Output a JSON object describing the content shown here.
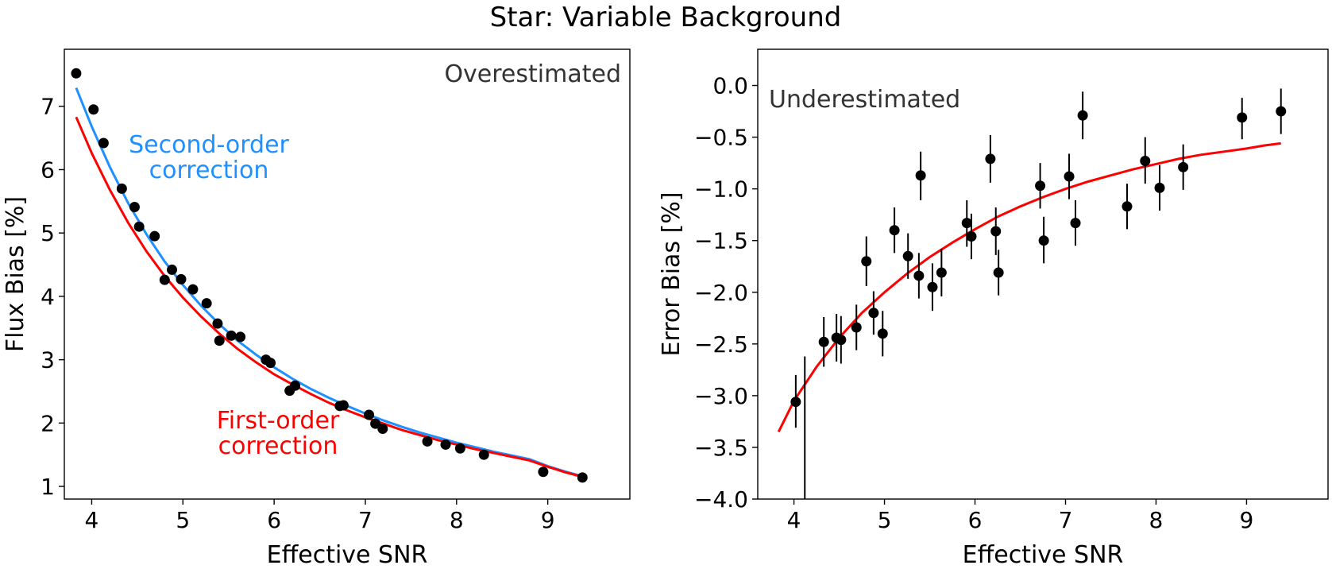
{
  "title": "Star: Variable Background",
  "colors": {
    "first_order": "#ff0000",
    "second_order": "#1e90ff",
    "points": "#000000"
  },
  "chart_data": [
    {
      "type": "scatter",
      "xlabel": "Effective SNR",
      "ylabel": "Flux Bias [%]",
      "xlim": [
        3.7,
        9.9
      ],
      "ylim": [
        0.8,
        7.9
      ],
      "xticks": [
        4,
        5,
        6,
        7,
        8,
        9
      ],
      "yticks": [
        1,
        2,
        3,
        4,
        5,
        6,
        7
      ],
      "annotation": "Overestimated",
      "series": [
        {
          "kind": "points",
          "x": [
            3.83,
            4.02,
            4.13,
            4.33,
            4.47,
            4.52,
            4.69,
            4.8,
            4.88,
            4.98,
            5.11,
            5.26,
            5.38,
            5.4,
            5.53,
            5.63,
            5.91,
            5.96,
            6.17,
            6.23,
            6.72,
            6.76,
            7.04,
            7.11,
            7.19,
            7.68,
            7.88,
            8.04,
            8.3,
            8.95,
            9.38
          ],
          "y": [
            7.52,
            6.95,
            6.42,
            5.7,
            5.41,
            5.1,
            4.95,
            4.26,
            4.42,
            4.27,
            4.11,
            3.89,
            3.57,
            3.3,
            3.38,
            3.36,
            3.0,
            2.95,
            2.51,
            2.59,
            2.27,
            2.28,
            2.13,
            1.99,
            1.91,
            1.71,
            1.66,
            1.6,
            1.5,
            1.23,
            1.14
          ]
        },
        {
          "name": "Second-order\ncorrection",
          "kind": "line",
          "color": "#1e90ff",
          "x": [
            3.83,
            4.0,
            4.2,
            4.4,
            4.6,
            4.8,
            5.0,
            5.2,
            5.4,
            5.6,
            5.8,
            6.0,
            6.2,
            6.4,
            6.6,
            6.8,
            7.0,
            7.2,
            7.4,
            7.6,
            7.8,
            8.0,
            8.2,
            8.4,
            8.6,
            8.8,
            9.0,
            9.2,
            9.38
          ],
          "y": [
            7.29,
            6.68,
            6.04,
            5.47,
            4.98,
            4.55,
            4.18,
            3.85,
            3.56,
            3.3,
            3.08,
            2.88,
            2.7,
            2.54,
            2.4,
            2.27,
            2.15,
            2.04,
            1.94,
            1.85,
            1.77,
            1.69,
            1.62,
            1.55,
            1.49,
            1.43,
            1.32,
            1.23,
            1.16
          ]
        },
        {
          "name": "First-order\ncorrection",
          "kind": "line",
          "color": "#ff0000",
          "x": [
            3.83,
            4.0,
            4.2,
            4.4,
            4.6,
            4.8,
            5.0,
            5.2,
            5.4,
            5.6,
            5.8,
            6.0,
            6.2,
            6.4,
            6.6,
            6.8,
            7.0,
            7.2,
            7.4,
            7.6,
            7.8,
            8.0,
            8.2,
            8.4,
            8.6,
            8.8,
            9.0,
            9.2,
            9.38
          ],
          "y": [
            6.83,
            6.26,
            5.68,
            5.16,
            4.71,
            4.32,
            3.98,
            3.68,
            3.41,
            3.17,
            2.96,
            2.77,
            2.61,
            2.46,
            2.32,
            2.2,
            2.09,
            1.99,
            1.89,
            1.81,
            1.73,
            1.66,
            1.59,
            1.53,
            1.47,
            1.41,
            1.31,
            1.22,
            1.15
          ]
        }
      ]
    },
    {
      "type": "scatter",
      "xlabel": "Effective SNR",
      "ylabel": "Error Bias [%]",
      "xlim": [
        3.6,
        9.9
      ],
      "ylim": [
        -4.0,
        0.35
      ],
      "xticks": [
        4,
        5,
        6,
        7,
        8,
        9
      ],
      "yticks": [
        0.0,
        -0.5,
        -1.0,
        -1.5,
        -2.0,
        -2.5,
        -3.0,
        -3.5,
        -4.0
      ],
      "ytick_labels": [
        "0.0",
        "−0.5",
        "−1.0",
        "−1.5",
        "−2.0",
        "−2.5",
        "−3.0",
        "−3.5",
        "−4.0"
      ],
      "annotation": "Underestimated",
      "series": [
        {
          "kind": "errorbar",
          "x": [
            4.02,
            4.33,
            4.47,
            4.52,
            4.69,
            4.8,
            4.88,
            4.98,
            5.11,
            5.26,
            5.38,
            5.4,
            5.53,
            5.63,
            5.91,
            5.96,
            6.17,
            6.23,
            6.26,
            6.72,
            6.76,
            7.04,
            7.11,
            7.19,
            7.68,
            7.88,
            8.04,
            8.3,
            8.95,
            9.38
          ],
          "y": [
            -3.06,
            -2.48,
            -2.44,
            -2.46,
            -2.34,
            -1.7,
            -2.2,
            -2.4,
            -1.4,
            -1.65,
            -1.84,
            -0.87,
            -1.95,
            -1.81,
            -1.33,
            -1.46,
            -0.71,
            -1.41,
            -1.81,
            -0.97,
            -1.5,
            -0.88,
            -1.33,
            -0.29,
            -1.17,
            -0.73,
            -0.99,
            -0.79,
            -0.31,
            -0.25
          ],
          "err_low": [
            0.25,
            0.24,
            0.23,
            0.23,
            0.22,
            0.24,
            0.21,
            0.22,
            0.22,
            0.22,
            0.22,
            0.24,
            0.23,
            0.23,
            0.23,
            0.22,
            0.23,
            0.23,
            0.22,
            0.22,
            0.22,
            0.22,
            0.22,
            0.23,
            0.22,
            0.22,
            0.22,
            0.22,
            0.21,
            0.22
          ],
          "err_high": [
            0.26,
            0.24,
            0.23,
            0.23,
            0.22,
            0.24,
            0.21,
            0.22,
            0.22,
            0.22,
            0.22,
            0.23,
            0.23,
            0.23,
            0.22,
            0.22,
            0.23,
            0.23,
            0.22,
            0.22,
            0.23,
            0.22,
            0.22,
            0.23,
            0.22,
            0.23,
            0.22,
            0.22,
            0.19,
            0.22
          ]
        },
        {
          "kind": "vline",
          "x": 4.12,
          "y": [
            -4.0,
            -2.62
          ]
        },
        {
          "kind": "line",
          "color": "#ff0000",
          "x": [
            3.83,
            4.0,
            4.25,
            4.5,
            4.75,
            5.0,
            5.25,
            5.5,
            5.75,
            6.0,
            6.25,
            6.5,
            6.75,
            7.0,
            7.25,
            7.5,
            7.75,
            8.0,
            8.25,
            8.5,
            8.75,
            9.0,
            9.2,
            9.38
          ],
          "y": [
            -3.35,
            -3.05,
            -2.72,
            -2.44,
            -2.2,
            -2.0,
            -1.82,
            -1.66,
            -1.52,
            -1.39,
            -1.27,
            -1.17,
            -1.08,
            -1.0,
            -0.93,
            -0.87,
            -0.81,
            -0.76,
            -0.71,
            -0.67,
            -0.64,
            -0.61,
            -0.58,
            -0.56
          ]
        }
      ]
    }
  ]
}
